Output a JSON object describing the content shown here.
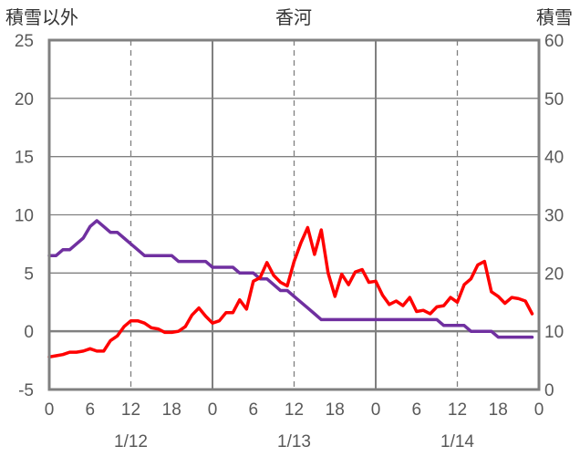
{
  "chart_data": {
    "type": "line",
    "title": "香河",
    "ylabel_left": "積雪以外",
    "ylabel_right": "積雪",
    "left_axis": {
      "ylim": [
        -5,
        25
      ],
      "ticks": [
        -5,
        0,
        5,
        10,
        15,
        20,
        25
      ]
    },
    "right_axis": {
      "ylim": [
        0,
        60
      ],
      "ticks": [
        0,
        10,
        20,
        30,
        40,
        50,
        60
      ]
    },
    "x_tick_labels": [
      "0",
      "6",
      "12",
      "18",
      "0",
      "6",
      "12",
      "18",
      "0",
      "6",
      "12",
      "18",
      "0"
    ],
    "date_labels": [
      {
        "hour": 12,
        "label": "1/12"
      },
      {
        "hour": 36,
        "label": "1/13"
      },
      {
        "hour": 60,
        "label": "1/14"
      }
    ],
    "xlim": [
      0,
      72
    ],
    "grid": {
      "vertical_solid_every": 24,
      "vertical_dashed_offset": 12,
      "zero_line": true
    },
    "colors": {
      "purple": "#7030A0",
      "red": "#FF0000",
      "frame": "#808080"
    },
    "series": [
      {
        "axis": "left",
        "color": "#7030A0",
        "x": [
          0,
          1,
          2,
          3,
          4,
          5,
          6,
          7,
          8,
          9,
          10,
          11,
          12,
          13,
          14,
          15,
          16,
          17,
          18,
          19,
          20,
          21,
          22,
          23,
          24,
          25,
          26,
          27,
          28,
          29,
          30,
          31,
          32,
          33,
          34,
          35,
          36,
          37,
          38,
          39,
          40,
          41,
          42,
          43,
          44,
          45,
          46,
          47,
          48,
          49,
          50,
          51,
          52,
          53,
          54,
          55,
          56,
          57,
          58,
          59,
          60,
          61,
          62,
          63,
          64,
          65,
          66,
          67,
          68,
          69,
          70,
          71
        ],
        "values": [
          6.5,
          6.5,
          7.0,
          7.0,
          7.5,
          8.0,
          9.0,
          9.5,
          9.0,
          8.5,
          8.5,
          8.0,
          7.5,
          7.0,
          6.5,
          6.5,
          6.5,
          6.5,
          6.5,
          6.0,
          6.0,
          6.0,
          6.0,
          6.0,
          5.5,
          5.5,
          5.5,
          5.5,
          5.0,
          5.0,
          5.0,
          4.5,
          4.5,
          4.0,
          3.5,
          3.5,
          3.0,
          2.5,
          2.0,
          1.5,
          1.0,
          1.0,
          1.0,
          1.0,
          1.0,
          1.0,
          1.0,
          1.0,
          1.0,
          1.0,
          1.0,
          1.0,
          1.0,
          1.0,
          1.0,
          1.0,
          1.0,
          1.0,
          0.5,
          0.5,
          0.5,
          0.5,
          0.0,
          0.0,
          0.0,
          0.0,
          -0.5,
          -0.5,
          -0.5,
          -0.5,
          -0.5,
          -0.5
        ]
      },
      {
        "axis": "left",
        "color": "#FF0000",
        "x": [
          0,
          1,
          2,
          3,
          4,
          5,
          6,
          7,
          8,
          9,
          10,
          11,
          12,
          13,
          14,
          15,
          16,
          17,
          18,
          19,
          20,
          21,
          22,
          23,
          24,
          25,
          26,
          27,
          28,
          29,
          30,
          31,
          32,
          33,
          34,
          35,
          36,
          37,
          38,
          39,
          40,
          41,
          42,
          43,
          44,
          45,
          46,
          47,
          48,
          49,
          50,
          51,
          52,
          53,
          54,
          55,
          56,
          57,
          58,
          59,
          60,
          61,
          62,
          63,
          64,
          65,
          66,
          67,
          68,
          69,
          70,
          71
        ],
        "values": [
          -2.2,
          -2.1,
          -2.0,
          -1.8,
          -1.8,
          -1.7,
          -1.5,
          -1.7,
          -1.7,
          -0.8,
          -0.4,
          0.4,
          0.9,
          0.9,
          0.7,
          0.3,
          0.2,
          -0.1,
          -0.1,
          0.0,
          0.4,
          1.4,
          2.0,
          1.3,
          0.7,
          0.9,
          1.6,
          1.6,
          2.7,
          1.9,
          4.3,
          4.6,
          5.9,
          4.8,
          4.2,
          3.9,
          6.0,
          7.6,
          8.9,
          6.6,
          8.7,
          5.0,
          3.0,
          4.9,
          4.0,
          5.1,
          5.3,
          4.2,
          4.3,
          3.1,
          2.3,
          2.6,
          2.2,
          2.9,
          1.7,
          1.8,
          1.5,
          2.1,
          2.2,
          2.9,
          2.5,
          4.0,
          4.5,
          5.7,
          6.0,
          3.4,
          3.0,
          2.4,
          2.9,
          2.8,
          2.6,
          1.5
        ]
      }
    ]
  }
}
